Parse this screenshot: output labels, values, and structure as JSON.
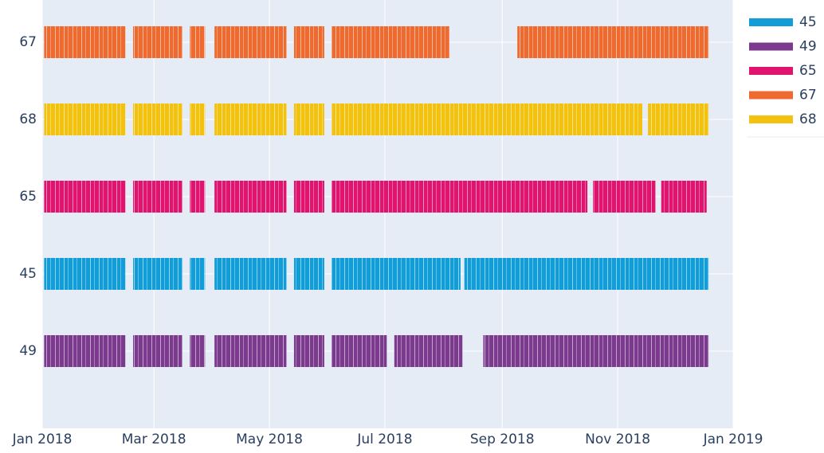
{
  "chart_data": {
    "type": "timeline",
    "categories": [
      "49",
      "45",
      "65",
      "68",
      "67"
    ],
    "xlim": [
      "2018-01-01",
      "2019-01-01"
    ],
    "xticks": [
      {
        "value": "2018-01-01",
        "label": "Jan 2018"
      },
      {
        "value": "2018-03-01",
        "label": "Mar 2018"
      },
      {
        "value": "2018-05-01",
        "label": "May 2018"
      },
      {
        "value": "2018-07-01",
        "label": "Jul 2018"
      },
      {
        "value": "2018-09-01",
        "label": "Sep 2018"
      },
      {
        "value": "2018-11-01",
        "label": "Nov 2018"
      },
      {
        "value": "2019-01-01",
        "label": "Jan 2019"
      }
    ],
    "grid": true,
    "legend": "right",
    "series": [
      {
        "name": "45",
        "color": "#119ed8",
        "intervals": [
          [
            "2018-01-02",
            "2018-02-14"
          ],
          [
            "2018-02-18",
            "2018-03-16"
          ],
          [
            "2018-03-20",
            "2018-03-28"
          ],
          [
            "2018-04-02",
            "2018-05-10"
          ],
          [
            "2018-05-14",
            "2018-05-30"
          ],
          [
            "2018-06-03",
            "2018-08-10"
          ],
          [
            "2018-08-12",
            "2018-12-19"
          ]
        ]
      },
      {
        "name": "49",
        "color": "#7b3a8e",
        "intervals": [
          [
            "2018-01-02",
            "2018-02-14"
          ],
          [
            "2018-02-18",
            "2018-03-16"
          ],
          [
            "2018-03-20",
            "2018-03-28"
          ],
          [
            "2018-04-02",
            "2018-05-10"
          ],
          [
            "2018-05-14",
            "2018-05-30"
          ],
          [
            "2018-06-03",
            "2018-07-02"
          ],
          [
            "2018-07-06",
            "2018-08-11"
          ],
          [
            "2018-08-22",
            "2018-12-19"
          ]
        ]
      },
      {
        "name": "65",
        "color": "#e0136f",
        "intervals": [
          [
            "2018-01-02",
            "2018-02-14"
          ],
          [
            "2018-02-18",
            "2018-03-16"
          ],
          [
            "2018-03-20",
            "2018-03-28"
          ],
          [
            "2018-04-02",
            "2018-05-10"
          ],
          [
            "2018-05-14",
            "2018-05-30"
          ],
          [
            "2018-06-03",
            "2018-10-16"
          ],
          [
            "2018-10-19",
            "2018-11-21"
          ],
          [
            "2018-11-24",
            "2018-12-18"
          ]
        ]
      },
      {
        "name": "67",
        "color": "#ee6a2f",
        "intervals": [
          [
            "2018-01-02",
            "2018-02-14"
          ],
          [
            "2018-02-18",
            "2018-03-16"
          ],
          [
            "2018-03-20",
            "2018-03-28"
          ],
          [
            "2018-04-02",
            "2018-05-10"
          ],
          [
            "2018-05-14",
            "2018-05-30"
          ],
          [
            "2018-06-03",
            "2018-08-04"
          ],
          [
            "2018-09-09",
            "2018-12-19"
          ]
        ]
      },
      {
        "name": "68",
        "color": "#f3c20f",
        "intervals": [
          [
            "2018-01-02",
            "2018-02-14"
          ],
          [
            "2018-02-18",
            "2018-03-16"
          ],
          [
            "2018-03-20",
            "2018-03-28"
          ],
          [
            "2018-04-02",
            "2018-05-10"
          ],
          [
            "2018-05-14",
            "2018-05-30"
          ],
          [
            "2018-06-03",
            "2018-11-14"
          ],
          [
            "2018-11-17",
            "2018-12-19"
          ]
        ]
      }
    ]
  }
}
